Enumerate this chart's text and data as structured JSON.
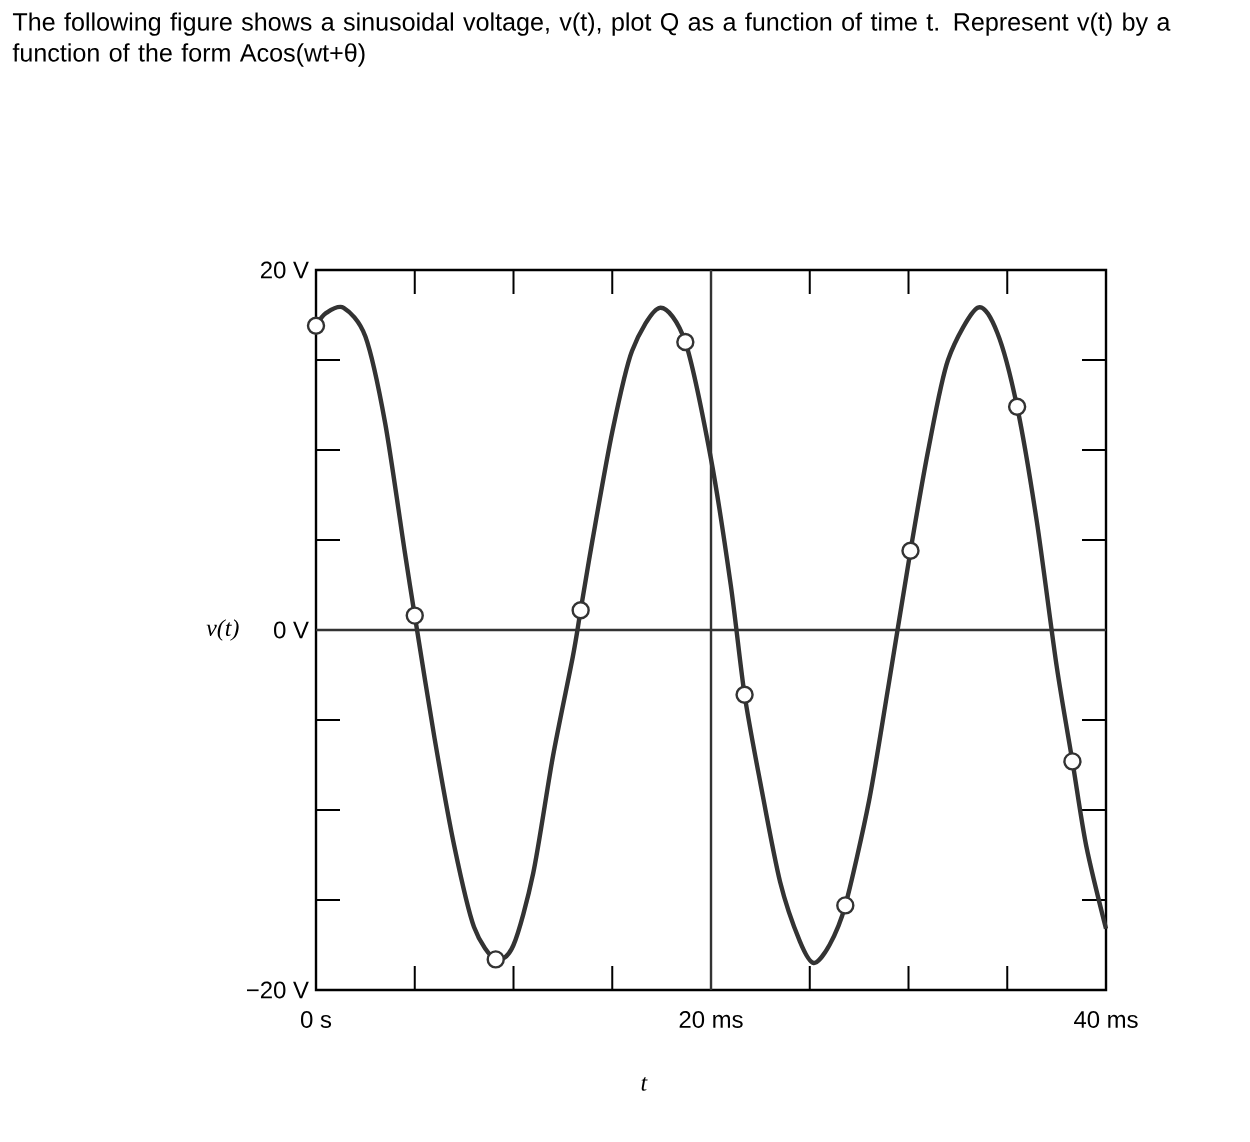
{
  "chart_data": {
    "type": "line",
    "title": "The following figure shows a sinusoidal voltage, v(t), plot Q as a function of time t. Represent v(t) by a function of the form Acos(wt+θ)",
    "xlabel": "t",
    "ylabel": "v(t)",
    "xlim": [
      0,
      40
    ],
    "ylim": [
      -20,
      20
    ],
    "xticks": [
      {
        "value": 0,
        "label": "0 s"
      },
      {
        "value": 5,
        "label": null
      },
      {
        "value": 10,
        "label": null
      },
      {
        "value": 15,
        "label": null
      },
      {
        "value": 20,
        "label": "20 ms"
      },
      {
        "value": 25,
        "label": null
      },
      {
        "value": 30,
        "label": null
      },
      {
        "value": 35,
        "label": null
      },
      {
        "value": 40,
        "label": "40 ms"
      }
    ],
    "yticks": [
      {
        "value": -20,
        "label": "−20 V"
      },
      {
        "value": -15,
        "label": null
      },
      {
        "value": -10,
        "label": null
      },
      {
        "value": -5,
        "label": null
      },
      {
        "value": 0,
        "label": "0 V"
      },
      {
        "value": 5,
        "label": null
      },
      {
        "value": 10,
        "label": null
      },
      {
        "value": 15,
        "label": null
      },
      {
        "value": 20,
        "label": "20 V"
      }
    ],
    "ref_lines": [
      {
        "axis": "x",
        "value": 20,
        "color": "#333333"
      },
      {
        "axis": "y",
        "value": 0,
        "color": "#333333"
      }
    ],
    "series": [
      {
        "color": "#333333",
        "marker": "none",
        "x": [
          0,
          0.5,
          1.4,
          2.5,
          3.5,
          4.5,
          5.0,
          6,
          7,
          8,
          9.1,
          10,
          11,
          12,
          13,
          13.4,
          14,
          15,
          16,
          17.4,
          18.7,
          20,
          21,
          21.7,
          22.5,
          23.5,
          24.5,
          25.2,
          26,
          26.8,
          28,
          29,
          30.1,
          31,
          32,
          33.5,
          34.5,
          35.5,
          36.5,
          37.5,
          38.3,
          39,
          40
        ],
        "values": [
          16.9,
          17.6,
          17.9,
          16.3,
          11.5,
          4.3,
          0.8,
          -6,
          -12,
          -16.5,
          -18.3,
          -17.5,
          -13.5,
          -7,
          -1.5,
          1.1,
          5,
          11,
          15.5,
          17.9,
          16,
          9.5,
          2.5,
          -3.6,
          -8.5,
          -14,
          -17.3,
          -18.5,
          -17.5,
          -15.3,
          -9.5,
          -3,
          4.4,
          10,
          15,
          17.9,
          16.5,
          12.4,
          6,
          -2,
          -7.3,
          -12,
          -16.6
        ]
      },
      {
        "type": "scatter",
        "color": "#333333",
        "marker": "circle",
        "x": [
          0,
          5.0,
          9.1,
          13.4,
          18.7,
          21.7,
          26.8,
          30.1,
          35.5,
          38.3
        ],
        "values": [
          16.9,
          0.8,
          -18.3,
          1.1,
          16,
          -3.6,
          -15.3,
          4.4,
          12.4,
          -7.3
        ]
      }
    ]
  }
}
